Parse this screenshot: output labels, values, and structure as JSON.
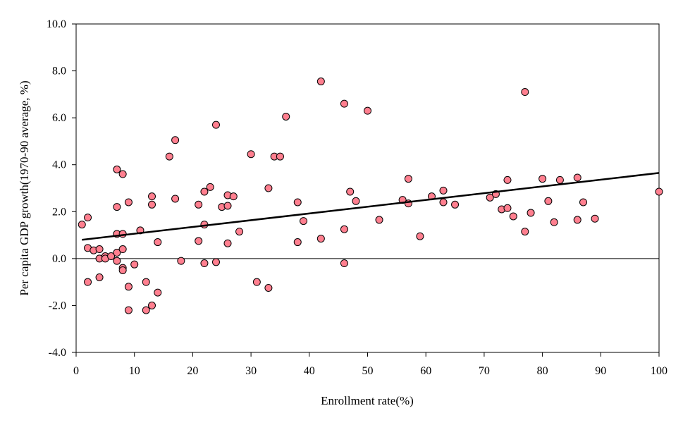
{
  "chart_data": {
    "type": "scatter",
    "xlabel": "Enrollment rate(%)",
    "ylabel": "Per capita GDP growth(1970-90 average, %)",
    "xlim": [
      0,
      100
    ],
    "ylim": [
      -4.0,
      10.0
    ],
    "x_ticks": [
      0,
      10,
      20,
      30,
      40,
      50,
      60,
      70,
      80,
      90,
      100
    ],
    "x_tick_labels": [
      "0",
      "10",
      "20",
      "30",
      "40",
      "50",
      "60",
      "70",
      "80",
      "90",
      "100"
    ],
    "y_ticks": [
      -4,
      -2,
      0,
      2,
      4,
      6,
      8,
      10
    ],
    "y_tick_labels": [
      "-4.0",
      "-2.0",
      "0.0",
      "2.0",
      "4.0",
      "6.0",
      "8.0",
      "10.0"
    ],
    "grid": false,
    "zero_line": true,
    "marker_color": "#ff7f8f",
    "marker_edge_color": "#000000",
    "trendline": {
      "type": "linear",
      "x": [
        1,
        100
      ],
      "y": [
        0.8,
        3.65
      ],
      "color": "#000000"
    },
    "points": [
      [
        1,
        1.45
      ],
      [
        2,
        1.75
      ],
      [
        2,
        0.45
      ],
      [
        2,
        -1.0
      ],
      [
        3,
        0.35
      ],
      [
        4,
        0.4
      ],
      [
        4,
        0.0
      ],
      [
        4,
        -0.8
      ],
      [
        5,
        0.1
      ],
      [
        5,
        0.0
      ],
      [
        6,
        0.1
      ],
      [
        7,
        3.8
      ],
      [
        7,
        2.2
      ],
      [
        7,
        1.05
      ],
      [
        7,
        0.25
      ],
      [
        7,
        -0.1
      ],
      [
        8,
        3.6
      ],
      [
        8,
        1.05
      ],
      [
        8,
        0.4
      ],
      [
        8,
        -0.4
      ],
      [
        8,
        -0.5
      ],
      [
        9,
        2.4
      ],
      [
        9,
        -1.2
      ],
      [
        9,
        -2.2
      ],
      [
        10,
        -0.25
      ],
      [
        11,
        1.2
      ],
      [
        12,
        -1.0
      ],
      [
        12,
        -2.2
      ],
      [
        13,
        2.65
      ],
      [
        13,
        2.3
      ],
      [
        13,
        -2.0
      ],
      [
        14,
        0.7
      ],
      [
        14,
        -1.45
      ],
      [
        16,
        4.35
      ],
      [
        17,
        5.05
      ],
      [
        17,
        2.55
      ],
      [
        18,
        -0.1
      ],
      [
        21,
        2.3
      ],
      [
        21,
        0.75
      ],
      [
        22,
        2.85
      ],
      [
        22,
        1.45
      ],
      [
        22,
        -0.2
      ],
      [
        23,
        3.05
      ],
      [
        24,
        5.7
      ],
      [
        24,
        -0.15
      ],
      [
        25,
        2.2
      ],
      [
        26,
        2.7
      ],
      [
        26,
        2.25
      ],
      [
        26,
        0.65
      ],
      [
        27,
        2.65
      ],
      [
        28,
        1.15
      ],
      [
        30,
        4.45
      ],
      [
        31,
        -1.0
      ],
      [
        33,
        3.0
      ],
      [
        33,
        -1.25
      ],
      [
        34,
        4.35
      ],
      [
        35,
        4.35
      ],
      [
        36,
        6.05
      ],
      [
        38,
        2.4
      ],
      [
        38,
        0.7
      ],
      [
        39,
        1.6
      ],
      [
        42,
        7.55
      ],
      [
        42,
        0.85
      ],
      [
        46,
        6.6
      ],
      [
        46,
        1.25
      ],
      [
        46,
        -0.2
      ],
      [
        47,
        2.85
      ],
      [
        48,
        2.45
      ],
      [
        50,
        6.3
      ],
      [
        52,
        1.65
      ],
      [
        56,
        2.5
      ],
      [
        57,
        3.4
      ],
      [
        57,
        2.35
      ],
      [
        59,
        0.95
      ],
      [
        61,
        2.65
      ],
      [
        63,
        2.9
      ],
      [
        63,
        2.4
      ],
      [
        65,
        2.3
      ],
      [
        71,
        2.6
      ],
      [
        72,
        2.75
      ],
      [
        73,
        2.1
      ],
      [
        74,
        3.35
      ],
      [
        74,
        2.15
      ],
      [
        75,
        1.8
      ],
      [
        77,
        7.1
      ],
      [
        77,
        1.15
      ],
      [
        78,
        1.95
      ],
      [
        80,
        3.4
      ],
      [
        81,
        2.45
      ],
      [
        82,
        1.55
      ],
      [
        83,
        3.35
      ],
      [
        86,
        3.45
      ],
      [
        86,
        1.65
      ],
      [
        87,
        2.4
      ],
      [
        89,
        1.7
      ],
      [
        100,
        2.85
      ]
    ]
  }
}
